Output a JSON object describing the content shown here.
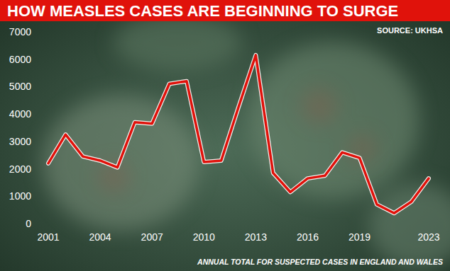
{
  "chart_data": {
    "type": "line",
    "title": "HOW MEASLES CASES ARE BEGINNING TO SURGE",
    "annotations": [
      "SOURCE: UKHSA",
      "ANNUAL TOTAL FOR SUSPECTED CASES IN ENGLAND AND WALES"
    ],
    "x": [
      2001,
      2002,
      2003,
      2004,
      2005,
      2006,
      2007,
      2008,
      2009,
      2010,
      2011,
      2012,
      2013,
      2014,
      2015,
      2016,
      2017,
      2018,
      2019,
      2020,
      2021,
      2022,
      2023
    ],
    "values": [
      2200,
      3250,
      2450,
      2300,
      2050,
      3700,
      3650,
      5100,
      5200,
      2250,
      2300,
      4250,
      6150,
      1850,
      1150,
      1650,
      1750,
      2600,
      2400,
      700,
      380,
      800,
      1650
    ],
    "color": "#e0120b",
    "xlim": [
      2001,
      2023
    ],
    "xticks": [
      2001,
      2004,
      2007,
      2010,
      2013,
      2016,
      2019,
      2023
    ],
    "ylim": [
      0,
      7000
    ],
    "yticks": [
      0,
      1000,
      2000,
      3000,
      4000,
      5000,
      6000,
      7000
    ],
    "grid": false
  }
}
